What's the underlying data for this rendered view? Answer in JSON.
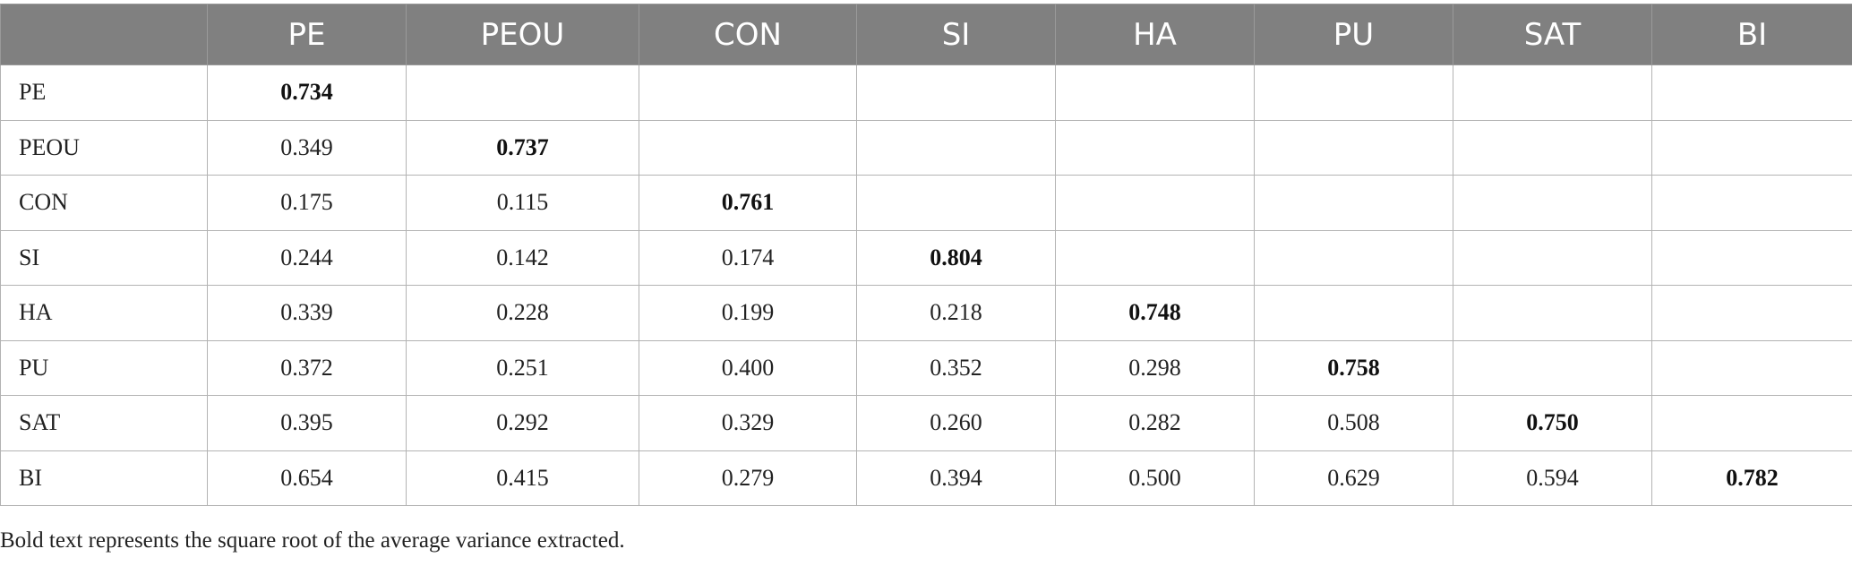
{
  "table": {
    "corner": "",
    "columns": [
      "PE",
      "PEOU",
      "CON",
      "SI",
      "HA",
      "PU",
      "SAT",
      "BI"
    ],
    "rows": [
      {
        "label": "PE",
        "cells": [
          "0.734",
          "",
          "",
          "",
          "",
          "",
          "",
          ""
        ]
      },
      {
        "label": "PEOU",
        "cells": [
          "0.349",
          "0.737",
          "",
          "",
          "",
          "",
          "",
          ""
        ]
      },
      {
        "label": "CON",
        "cells": [
          "0.175",
          "0.115",
          "0.761",
          "",
          "",
          "",
          "",
          ""
        ]
      },
      {
        "label": "SI",
        "cells": [
          "0.244",
          "0.142",
          "0.174",
          "0.804",
          "",
          "",
          "",
          ""
        ]
      },
      {
        "label": "HA",
        "cells": [
          "0.339",
          "0.228",
          "0.199",
          "0.218",
          "0.748",
          "",
          "",
          ""
        ]
      },
      {
        "label": "PU",
        "cells": [
          "0.372",
          "0.251",
          "0.400",
          "0.352",
          "0.298",
          "0.758",
          "",
          ""
        ]
      },
      {
        "label": "SAT",
        "cells": [
          "0.395",
          "0.292",
          "0.329",
          "0.260",
          "0.282",
          "0.508",
          "0.750",
          ""
        ]
      },
      {
        "label": "BI",
        "cells": [
          "0.654",
          "0.415",
          "0.279",
          "0.394",
          "0.500",
          "0.629",
          "0.594",
          "0.782"
        ]
      }
    ]
  },
  "footnote": "Bold text represents the square root of the average variance extracted.",
  "colors": {
    "header_bg": "#808080",
    "header_text": "#ffffff",
    "border": "#b3b3b3"
  }
}
